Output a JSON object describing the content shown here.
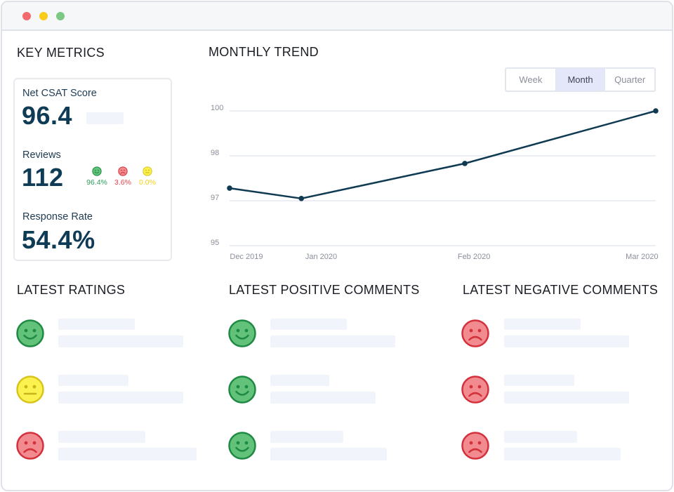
{
  "window": {
    "controls": [
      "close",
      "minimize",
      "maximize"
    ]
  },
  "key_metrics": {
    "title": "KEY METRICS",
    "net_csat": {
      "label": "Net CSAT Score",
      "value": "96.4"
    },
    "reviews": {
      "label": "Reviews",
      "value": "112",
      "breakdown": [
        {
          "sentiment": "positive",
          "icon": "happy-face-icon",
          "value": "96.4%",
          "color": "#2e9e5b"
        },
        {
          "sentiment": "negative",
          "icon": "sad-face-icon",
          "value": "3.6%",
          "color": "#e0444f"
        },
        {
          "sentiment": "neutral",
          "icon": "neutral-face-icon",
          "value": "0.0%",
          "color": "#f2d21b"
        }
      ]
    },
    "response_rate": {
      "label": "Response Rate",
      "value": "54.4%"
    }
  },
  "monthly_trend": {
    "title": "MONTHLY TREND",
    "periods": [
      "Week",
      "Month",
      "Quarter"
    ],
    "active_period": "Month"
  },
  "chart_data": {
    "type": "line",
    "title": "MONTHLY TREND",
    "categories": [
      "Dec 2019",
      "Jan 2020",
      "Feb 2020",
      "Mar 2020"
    ],
    "x": [
      0,
      0.47,
      1.54,
      2.79
    ],
    "x_tick_positions": [
      0.11,
      0.6,
      1.6,
      2.7
    ],
    "y_ticks": [
      "100",
      "98",
      "97",
      "95"
    ],
    "series": [
      {
        "name": "Net CSAT Score",
        "color": "#0f3a52",
        "values": [
          2.28,
          2.05,
          2.83,
          4.0
        ]
      }
    ],
    "xlabel": "",
    "ylabel": "",
    "grid": true
  },
  "latest_ratings": {
    "title": "LATEST RATINGS",
    "items": [
      {
        "icon": "happy-face-icon",
        "sentiment": "positive"
      },
      {
        "icon": "neutral-face-icon",
        "sentiment": "neutral"
      },
      {
        "icon": "sad-face-icon",
        "sentiment": "negative"
      }
    ]
  },
  "latest_positive_comments": {
    "title": "LATEST POSITIVE COMMENTS",
    "items": [
      {
        "icon": "happy-face-icon",
        "sentiment": "positive"
      },
      {
        "icon": "happy-face-icon",
        "sentiment": "positive"
      },
      {
        "icon": "happy-face-icon",
        "sentiment": "positive"
      }
    ]
  },
  "latest_negative_comments": {
    "title": "LATEST NEGATIVE COMMENTS",
    "items": [
      {
        "icon": "sad-face-icon",
        "sentiment": "negative"
      },
      {
        "icon": "sad-face-icon",
        "sentiment": "negative"
      },
      {
        "icon": "sad-face-icon",
        "sentiment": "negative"
      }
    ]
  },
  "colors": {
    "positive_fill": "#63c27a",
    "positive_stroke": "#1f8a44",
    "neutral_fill": "#fbf14f",
    "neutral_stroke": "#d8c41b",
    "negative_fill": "#f28b8f",
    "negative_stroke": "#d3313c",
    "placeholder": "#f1f4fb",
    "line": "#0f3a52",
    "grid": "#e6e8f4"
  }
}
